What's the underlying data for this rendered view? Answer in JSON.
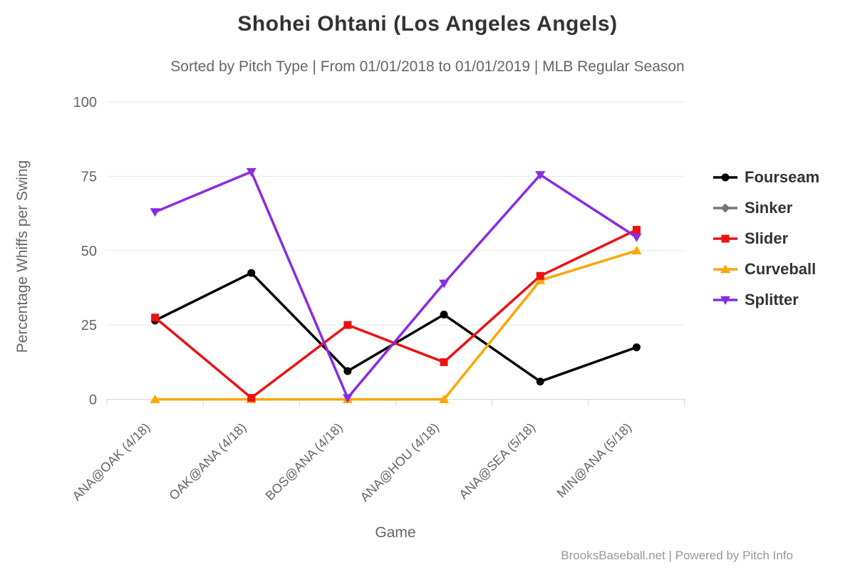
{
  "chart_data": {
    "type": "line",
    "title": "Shohei Ohtani (Los Angeles Angels)",
    "subtitle": "Sorted by Pitch Type | From 01/01/2018 to 01/01/2019 | MLB Regular Season",
    "xlabel": "Game",
    "ylabel": "Percentage Whiffs per Swing",
    "credits": "BrooksBaseball.net | Powered by Pitch Info",
    "ylim": [
      0,
      100
    ],
    "yticks": [
      0,
      25,
      50,
      75,
      100
    ],
    "grid": true,
    "legend_position": "right",
    "draw_order": [
      0,
      1,
      3,
      2,
      4
    ],
    "categories": [
      "ANA@OAK (4/18)",
      "OAK@ANA (4/18)",
      "BOS@ANA (4/18)",
      "ANA@HOU (4/18)",
      "ANA@SEA (5/18)",
      "MIN@ANA (5/18)"
    ],
    "series": [
      {
        "name": "Fourseam",
        "color": "#000000",
        "marker": "circle",
        "values": [
          26.5,
          42.5,
          9.5,
          28.5,
          6,
          17.5
        ]
      },
      {
        "name": "Sinker",
        "color": "#777777",
        "marker": "diamond",
        "values": []
      },
      {
        "name": "Slider",
        "color": "#ee1111",
        "marker": "square",
        "values": [
          27.5,
          0.5,
          25,
          12.5,
          41.5,
          57
        ]
      },
      {
        "name": "Curveball",
        "color": "#ffa500",
        "marker": "triangle-up",
        "values": [
          0,
          0,
          0,
          0,
          40,
          50
        ]
      },
      {
        "name": "Splitter",
        "color": "#8a2be2",
        "marker": "triangle-down",
        "values": [
          63,
          76.5,
          0.5,
          39,
          75.5,
          54.5
        ]
      }
    ],
    "colors": {
      "title_text": "#333333",
      "subtitle_text": "#666666",
      "axis_text": "#666666",
      "gridline": "#e6e6e6",
      "axis_line": "#ccd6eb",
      "legend_text": "#333333",
      "credits_text": "#999999"
    }
  }
}
